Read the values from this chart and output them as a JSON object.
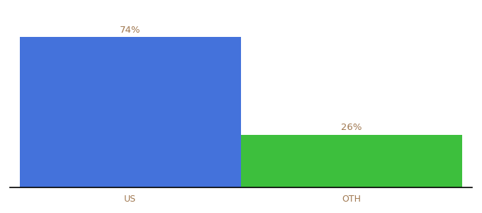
{
  "categories": [
    "US",
    "OTH"
  ],
  "values": [
    74,
    26
  ],
  "bar_colors": [
    "#4472db",
    "#3dbf3d"
  ],
  "label_color": "#a07850",
  "label_fontsize": 9.5,
  "tick_fontsize": 9,
  "tick_color": "#a07850",
  "background_color": "#ffffff",
  "bar_width": 0.55,
  "ylim": [
    0,
    85
  ],
  "labels": [
    "74%",
    "26%"
  ],
  "x_positions": [
    0.3,
    0.85
  ]
}
